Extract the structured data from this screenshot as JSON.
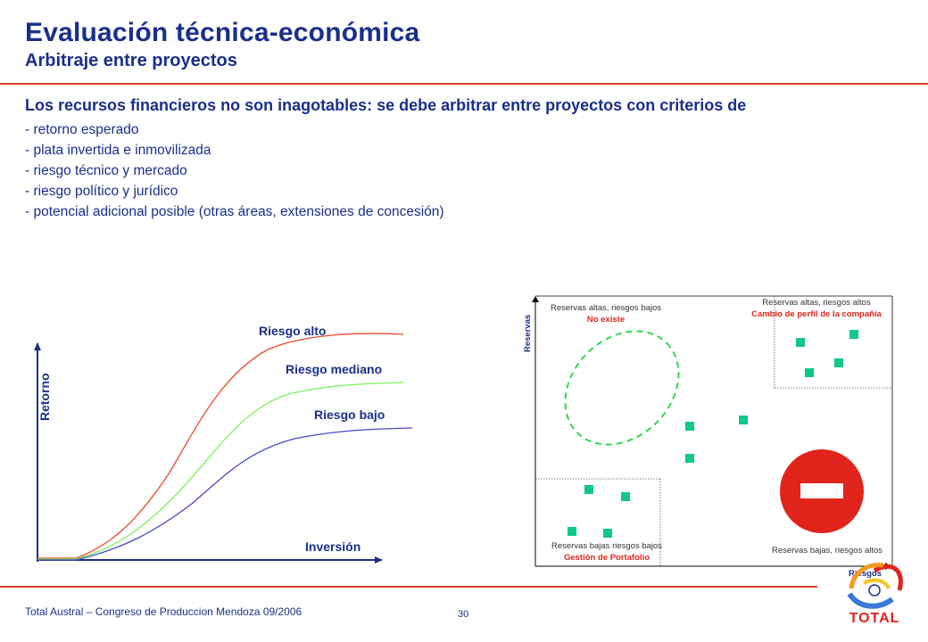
{
  "header": {
    "title": "Evaluación técnica-económica",
    "subtitle": "Arbitraje entre proyectos"
  },
  "intro": "Los recursos financieros no son inagotables: se debe arbitrar entre proyectos con criterios de",
  "bullets": [
    "- retorno esperado",
    "- plata invertida e inmovilizada",
    "- riesgo técnico y mercado",
    "- riesgo político y jurídico",
    "- potencial adicional posible (otras áreas, extensiones de concesión)"
  ],
  "risk_chart": {
    "y_axis_label": "Retorno",
    "x_axis_label": "Inversión",
    "curves": [
      {
        "label": "Riesgo alto",
        "color": "#e84a2c"
      },
      {
        "label": "Riesgo mediano",
        "color": "#7cf25c"
      },
      {
        "label": "Riesgo bajo",
        "color": "#4848c8"
      }
    ]
  },
  "matrix": {
    "y_axis_label": "Reservas",
    "x_axis_label": "Riesgos",
    "quadrants": {
      "top_left": {
        "title": "Reservas altas, riesgos bajos",
        "note": "No existe"
      },
      "top_right": {
        "title": "Reservas altas, riesgos altos",
        "note": "Cambio de perfil de la compañía"
      },
      "bottom_left": {
        "title": "Reservas bajas riesgos bajos",
        "note": "Gestión de Portafolio"
      },
      "bottom_right": {
        "title": "Reservas bajas, riesgos altos"
      }
    },
    "colors": {
      "project": "#10c888",
      "no_entry": "#e0241c",
      "note": "#e0241c",
      "ellipse": "#2fd84a"
    }
  },
  "footer": {
    "left": "Total Austral – Congreso de Produccion Mendoza 09/2006",
    "page": "30",
    "logo_text": "TOTAL"
  }
}
